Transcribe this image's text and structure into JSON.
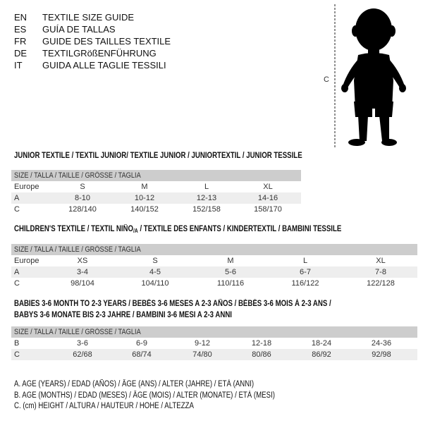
{
  "header": {
    "languages": [
      {
        "code": "EN",
        "title": "TEXTILE SIZE GUIDE"
      },
      {
        "code": "ES",
        "title": "GUÍA DE TALLAS"
      },
      {
        "code": "FR",
        "title": "GUIDE DES TAILLES TEXTILE"
      },
      {
        "code": "DE",
        "title": "TEXTILGRößENFÜHRUNG"
      },
      {
        "code": "IT",
        "title": "GUIDA ALLE TAGLIE TESSILI"
      }
    ],
    "figure_label": "C"
  },
  "junior": {
    "title": "JUNIOR TEXTILE / TEXTIL JUNIOR/ TEXTILE JUNIOR / JUNIORTEXTIL / JUNIOR TESSILE",
    "header": "SIZE / TALLA / TAILLE / GRÖSSE / TAGLIA",
    "rows": [
      {
        "label": "Europe",
        "cells": [
          "S",
          "M",
          "L",
          "XL"
        ]
      },
      {
        "label": "A",
        "cells": [
          "8-10",
          "10-12",
          "12-13",
          "14-16"
        ]
      },
      {
        "label": "C",
        "cells": [
          "128/140",
          "140/152",
          "152/158",
          "158/170"
        ]
      }
    ]
  },
  "children": {
    "title_pre": "CHILDREN'S TEXTILE / TEXTIL NIÑO",
    "title_sub": "/A",
    "title_post": " / TEXTILE DES ENFANTS / KINDERTEXTIL / BAMBINI TESSILE",
    "header": "SIZE / TALLA / TAILLE / GRÖSSE / TAGLIA",
    "rows": [
      {
        "label": "Europe",
        "cells": [
          "XS",
          "S",
          "M",
          "L",
          "XL"
        ]
      },
      {
        "label": "A",
        "cells": [
          "3-4",
          "4-5",
          "5-6",
          "6-7",
          "7-8"
        ]
      },
      {
        "label": "C",
        "cells": [
          "98/104",
          "104/110",
          "110/116",
          "116/122",
          "122/128"
        ]
      }
    ]
  },
  "babies": {
    "title_line1": "BABIES 3-6 MONTH TO 2-3 YEARS / BEBÉS 3-6 MESES A 2-3 AÑOS / BÉBÉS 3-6 MOIS À 2-3 ANS /",
    "title_line2": "BABYS 3-6 MONATE BIS 2-3 JAHRE / BAMBINI 3-6 MESI A 2-3 ANNI",
    "header": "SIZE / TALLA / TAILLE / GRÖSSE / TAGLIA",
    "rows": [
      {
        "label": "B",
        "cells": [
          "3-6",
          "6-9",
          "9-12",
          "12-18",
          "18-24",
          "24-36"
        ]
      },
      {
        "label": "C",
        "cells": [
          "62/68",
          "68/74",
          "74/80",
          "80/86",
          "86/92",
          "92/98"
        ]
      }
    ]
  },
  "legend": [
    "A. AGE (YEARS) / EDAD (AÑOS) / ÂGE (ANS) / ALTER (JAHRE) / ETÀ (ANNI)",
    "B. AGE (MONTHS) / EDAD (MESES) / ÂGE (MOIS) / ALTER (MONATE) / ETÀ (MESI)",
    "C. (cm) HEIGHT / ALTURA / HAUTEUR / HÖHE / ALTEZZA"
  ]
}
